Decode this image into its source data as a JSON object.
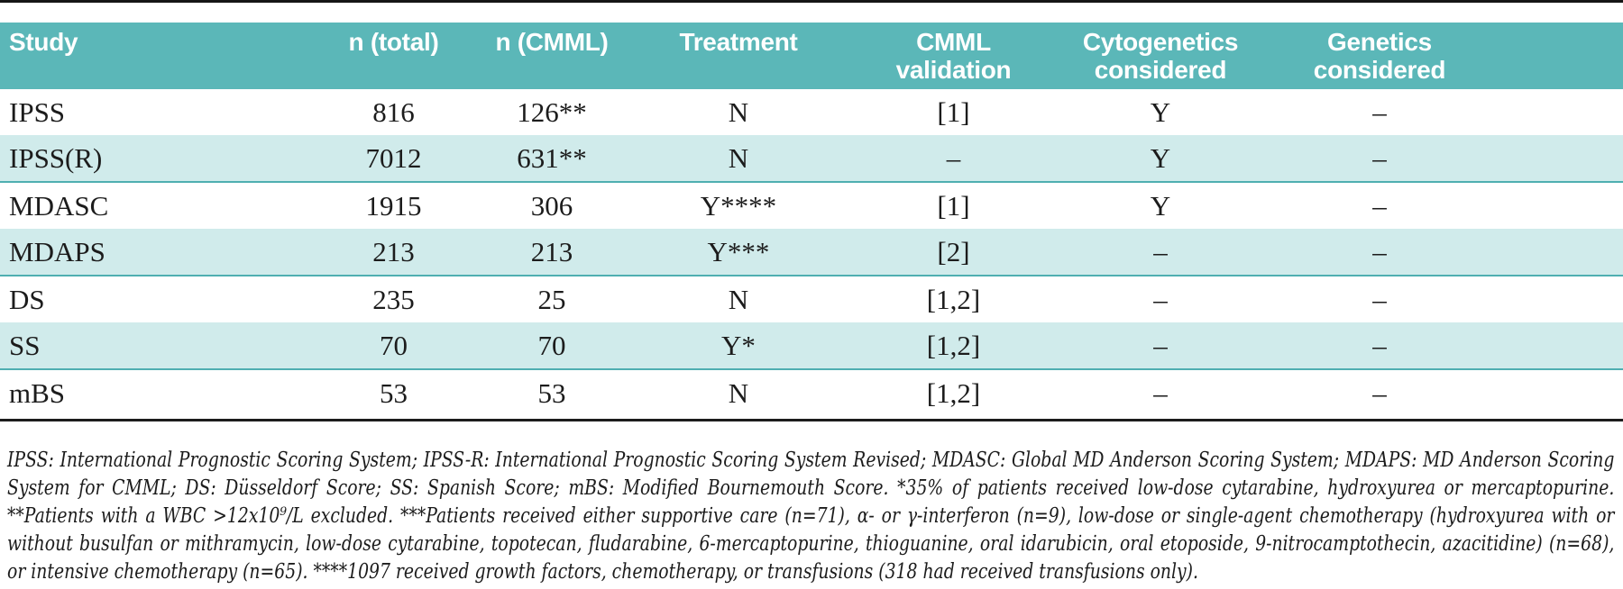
{
  "colors": {
    "header_bg": "#5bb7b8",
    "header_text": "#ffffff",
    "row_shaded": "#d0ebeb",
    "row_border": "#4fafb1",
    "divider": "#1c1c1c",
    "text": "#1c1c1c"
  },
  "header": {
    "columns": [
      {
        "line1": "Study",
        "line2": ""
      },
      {
        "line1": "n (total)",
        "line2": ""
      },
      {
        "line1": "n (CMML)",
        "line2": ""
      },
      {
        "line1": "Treatment",
        "line2": ""
      },
      {
        "line1": "CMML",
        "line2": "validation"
      },
      {
        "line1": "Cytogenetics",
        "line2": "considered"
      },
      {
        "line1": "Genetics",
        "line2": "considered"
      }
    ]
  },
  "rows": [
    {
      "shaded": false,
      "cells": [
        "IPSS",
        "816",
        "126**",
        "N",
        "[1]",
        "Y",
        "–"
      ]
    },
    {
      "shaded": true,
      "cells": [
        "IPSS(R)",
        "7012",
        "631**",
        "N",
        "–",
        "Y",
        "–"
      ]
    },
    {
      "shaded": false,
      "cells": [
        "MDASC",
        "1915",
        "306",
        "Y****",
        "[1]",
        "Y",
        "–"
      ]
    },
    {
      "shaded": true,
      "cells": [
        "MDAPS",
        "213",
        "213",
        "Y***",
        "[2]",
        "–",
        "–"
      ]
    },
    {
      "shaded": false,
      "cells": [
        "DS",
        "235",
        "25",
        "N",
        "[1,2]",
        "–",
        "–"
      ]
    },
    {
      "shaded": true,
      "cells": [
        "SS",
        "70",
        "70",
        "Y*",
        "[1,2]",
        "–",
        "–"
      ]
    },
    {
      "shaded": false,
      "cells": [
        "mBS",
        "53",
        "53",
        "N",
        "[1,2]",
        "–",
        "–"
      ]
    }
  ],
  "footnote": {
    "text": "IPSS: International Prognostic Scoring System; IPSS-R: International Prognostic Scoring System Revised; MDASC: Global MD Anderson Scoring System; MDAPS: MD Anderson Scoring System for CMML; DS: Düsseldorf Score; SS: Spanish Score; mBS: Modified Bournemouth Score. *35% of patients received low-dose cytarabine, hydroxyurea or mercaptopurine. **Patients with a WBC >12x10⁹/L excluded. ***Patients received either supportive care (n=71), α- or γ-interferon (n=9), low-dose or single-agent chemotherapy (hydroxyurea with or without busulfan or mithramycin, low-dose cytarabine, topotecan, fludarabine, 6-mercaptopurine, thioguanine, oral idarubicin, oral etoposide, 9-nitrocamptothecin, azacitidine) (n=68), or intensive chemotherapy (n=65). ****1097 received growth factors, chemotherapy, or transfusions (318 had received transfusions only)."
  }
}
